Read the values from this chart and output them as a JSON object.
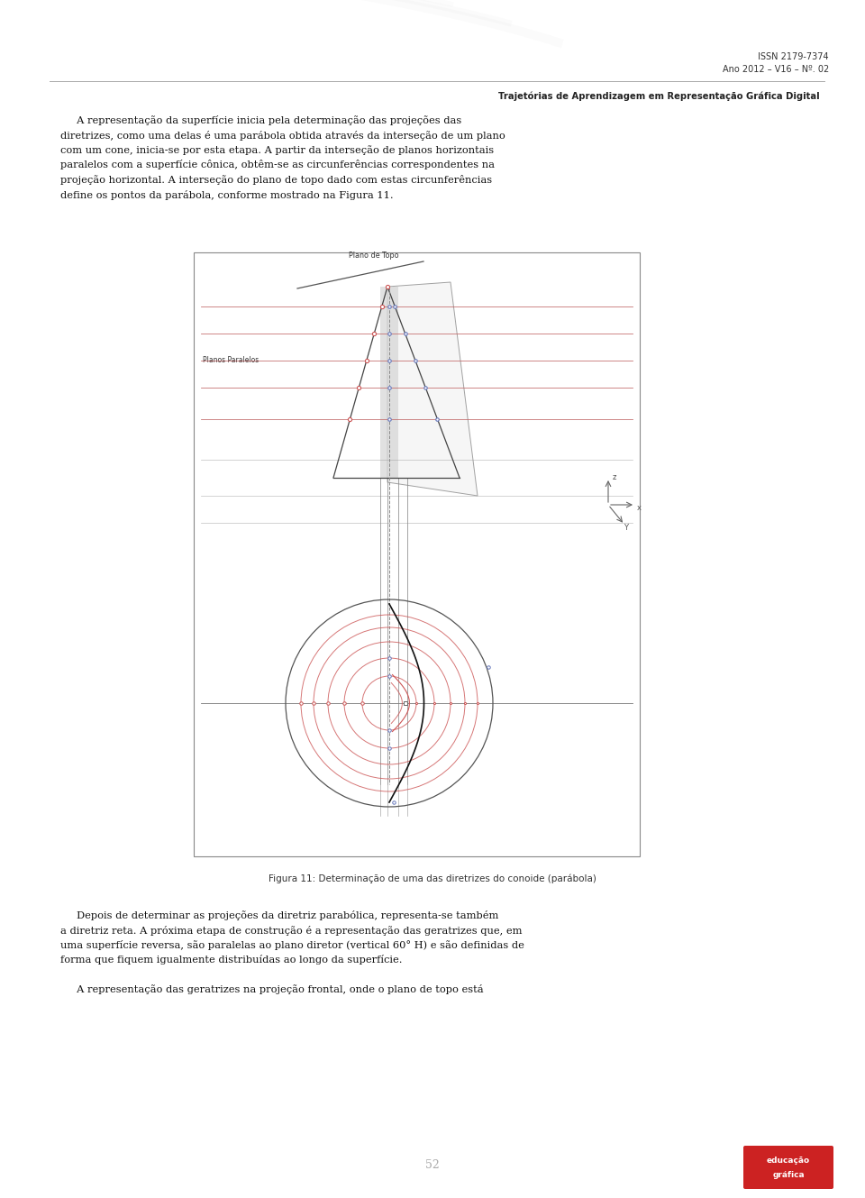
{
  "page_width": 9.6,
  "page_height": 13.29,
  "dpi": 100,
  "bg_color": "#ffffff",
  "issn_text": "ISSN 2179-7374",
  "ano_text": "Ano 2012 – V16 – Nº. 02",
  "journal_title": "Trajetórias de Aprendizagem em Representação Gráfica Digital",
  "fig_caption": "Figura 11: Determinação de uma das diretrizes do conoide (parábola)",
  "page_num": "52",
  "cone_color": "#444444",
  "red_color": "#cc5555",
  "blue_color": "#6677bb",
  "gray_color": "#888888",
  "dark_color": "#222222"
}
